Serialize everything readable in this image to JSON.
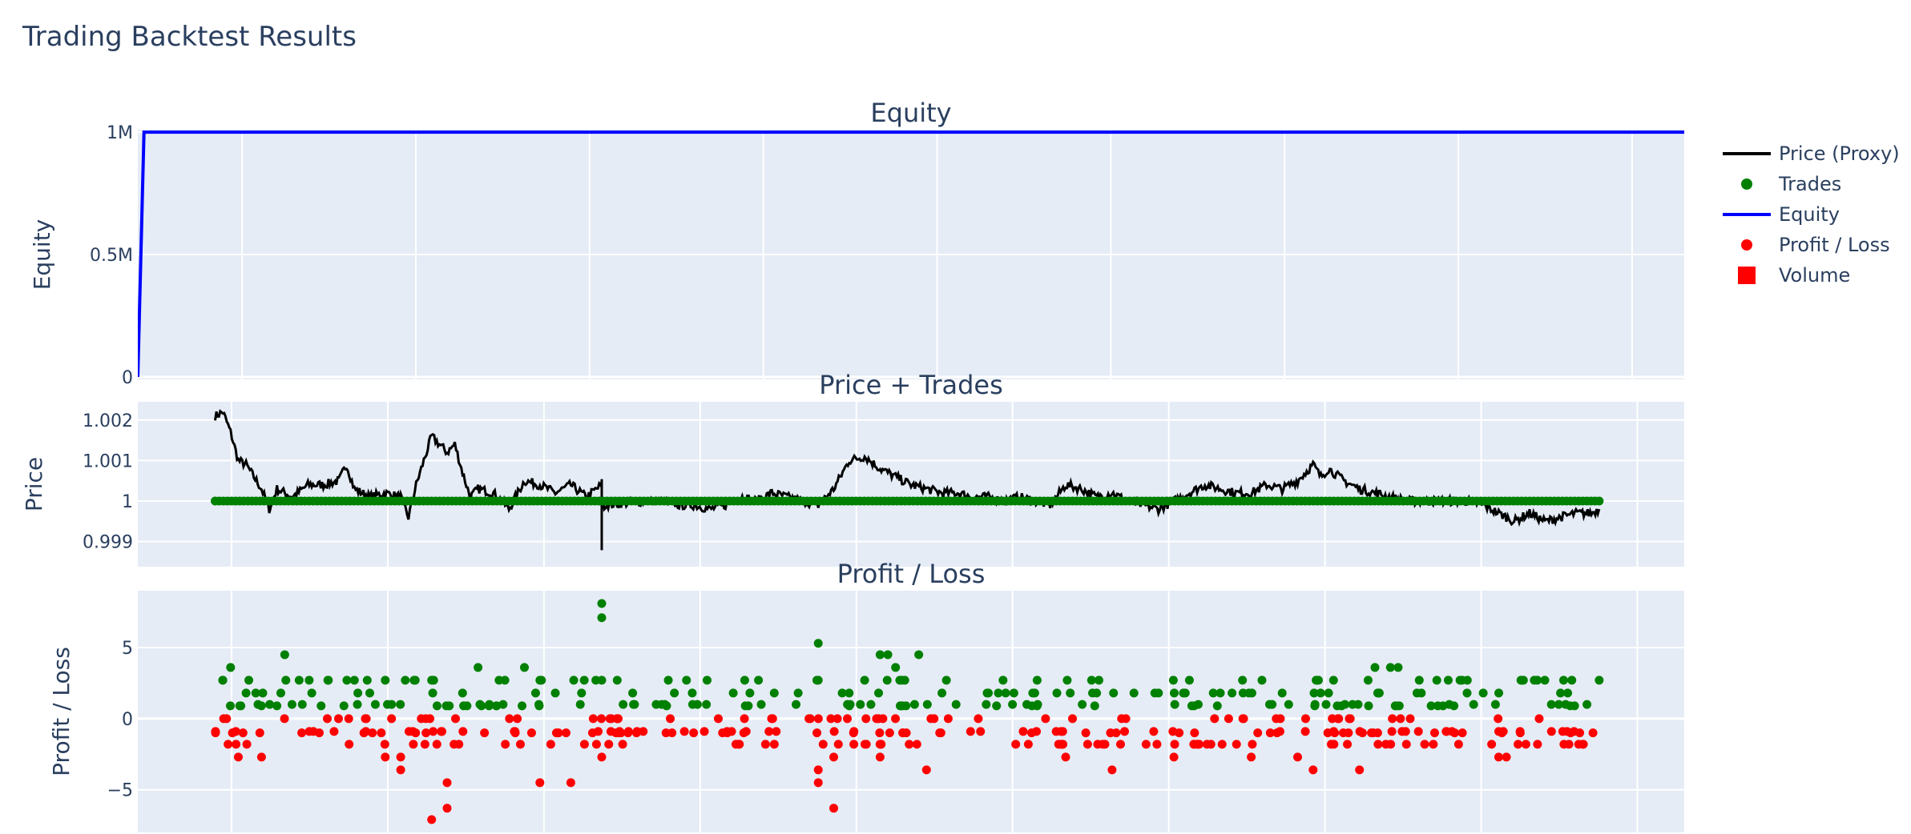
{
  "title": "Trading Backtest Results",
  "legend": {
    "placement": "top-right",
    "items": [
      {
        "label": "Price (Proxy)",
        "symbol": "line",
        "color": "#000000"
      },
      {
        "label": "Trades",
        "symbol": "dot",
        "color": "#008000"
      },
      {
        "label": "Equity",
        "symbol": "line",
        "color": "#0000ff"
      },
      {
        "label": "Profit / Loss",
        "symbol": "dot",
        "color": "#ff0000"
      },
      {
        "label": "Volume",
        "symbol": "square",
        "color": "#ff0000"
      }
    ]
  },
  "colors": {
    "plot_bg": "#e5ecf6",
    "grid": "#ffffff",
    "text": "#2a3f5f"
  },
  "chart_data": [
    {
      "type": "line",
      "subplot_title": "Equity",
      "ylabel": "Equity",
      "ylim": [
        -10000,
        1010000
      ],
      "yticks": [
        0,
        500000,
        1000000
      ],
      "ytick_labels": [
        "0",
        "0.5M",
        "1M"
      ],
      "x_grid_count": 9,
      "series": [
        {
          "name": "Equity",
          "color": "#0000ff",
          "points": [
            [
              0,
              0
            ],
            [
              0.004,
              1000000
            ],
            [
              1,
              1000000
            ]
          ]
        }
      ]
    },
    {
      "type": "line",
      "subplot_title": "Price + Trades",
      "ylabel": "Price",
      "ylim": [
        0.99838,
        1.00245
      ],
      "yticks": [
        0.999,
        1,
        1.001,
        1.002
      ],
      "ytick_labels": [
        "0.999",
        "1",
        "1.001",
        "1.002"
      ],
      "x_grid_count": 10,
      "price_series": {
        "name": "Price (Proxy)",
        "color": "#000000",
        "x_start": 0.05,
        "x_end": 0.945,
        "anchors": [
          [
            0.05,
            1.0021
          ],
          [
            0.055,
            1.0022
          ],
          [
            0.06,
            1.0017
          ],
          [
            0.065,
            1.001
          ],
          [
            0.07,
            1.0009
          ],
          [
            0.075,
            1.0006
          ],
          [
            0.08,
            1.0003
          ],
          [
            0.085,
            0.9998
          ],
          [
            0.09,
            1.0003
          ],
          [
            0.095,
            1.0002
          ],
          [
            0.1,
            1.0001
          ],
          [
            0.11,
            1.0004
          ],
          [
            0.12,
            1.0004
          ],
          [
            0.13,
            1.0005
          ],
          [
            0.135,
            1.0009
          ],
          [
            0.14,
            1.0003
          ],
          [
            0.15,
            1.0001
          ],
          [
            0.16,
            1.0002
          ],
          [
            0.17,
            1.0001
          ],
          [
            0.175,
            0.9996
          ],
          [
            0.18,
            1.0004
          ],
          [
            0.19,
            1.0016
          ],
          [
            0.2,
            1.0012
          ],
          [
            0.205,
            1.0014
          ],
          [
            0.21,
            1.0007
          ],
          [
            0.215,
            1.0001
          ],
          [
            0.22,
            1.0003
          ],
          [
            0.23,
            1.0002
          ],
          [
            0.24,
            0.9998
          ],
          [
            0.25,
            1.0005
          ],
          [
            0.26,
            1.0004
          ],
          [
            0.27,
            1.0002
          ],
          [
            0.28,
            1.0004
          ],
          [
            0.29,
            1.0001
          ],
          [
            0.3,
            1.0004
          ],
          [
            0.3,
            1.0005
          ],
          [
            0.3,
            0.9997
          ],
          [
            0.3,
            0.999
          ],
          [
            0.3,
            0.9987
          ],
          [
            0.3,
            0.9994
          ],
          [
            0.3,
            0.9996
          ],
          [
            0.3,
            0.9999
          ],
          [
            0.33,
            1.0
          ],
          [
            0.34,
            1.0
          ],
          [
            0.35,
            0.9999
          ],
          [
            0.36,
            0.9999
          ],
          [
            0.37,
            0.9998
          ],
          [
            0.38,
            0.9999
          ],
          [
            0.39,
            1.0001
          ],
          [
            0.4,
            1.0
          ],
          [
            0.41,
            1.0002
          ],
          [
            0.42,
            1.0001
          ],
          [
            0.43,
            1.0
          ],
          [
            0.44,
            0.9999
          ],
          [
            0.45,
            1.0003
          ],
          [
            0.46,
            1.001
          ],
          [
            0.47,
            1.0011
          ],
          [
            0.48,
            1.0008
          ],
          [
            0.49,
            1.0006
          ],
          [
            0.5,
            1.0004
          ],
          [
            0.51,
            1.0003
          ],
          [
            0.52,
            1.0002
          ],
          [
            0.53,
            1.0002
          ],
          [
            0.54,
            1.0001
          ],
          [
            0.55,
            1.0001
          ],
          [
            0.56,
            1.0
          ],
          [
            0.57,
            1.0001
          ],
          [
            0.58,
            1.0
          ],
          [
            0.59,
            0.9999
          ],
          [
            0.6,
            1.0004
          ],
          [
            0.61,
            1.0003
          ],
          [
            0.62,
            1.0001
          ],
          [
            0.63,
            1.0002
          ],
          [
            0.64,
            1.0
          ],
          [
            0.65,
            0.9999
          ],
          [
            0.66,
            0.9998
          ],
          [
            0.67,
            1.0
          ],
          [
            0.68,
            1.0002
          ],
          [
            0.69,
            1.0004
          ],
          [
            0.7,
            1.0003
          ],
          [
            0.71,
            1.0002
          ],
          [
            0.72,
            1.0002
          ],
          [
            0.73,
            1.0004
          ],
          [
            0.74,
            1.0003
          ],
          [
            0.75,
            1.0005
          ],
          [
            0.76,
            1.0009
          ],
          [
            0.765,
            1.0006
          ],
          [
            0.77,
            1.0008
          ],
          [
            0.78,
            1.0005
          ],
          [
            0.79,
            1.0003
          ],
          [
            0.8,
            1.0002
          ],
          [
            0.81,
            1.0001
          ],
          [
            0.82,
            1.0
          ],
          [
            0.83,
            1.0
          ],
          [
            0.84,
            1.0
          ],
          [
            0.85,
            1.0
          ],
          [
            0.86,
            1.0
          ],
          [
            0.87,
            0.9999
          ],
          [
            0.88,
            0.9997
          ],
          [
            0.89,
            0.9995
          ],
          [
            0.9,
            0.9997
          ],
          [
            0.91,
            0.9995
          ],
          [
            0.92,
            0.9996
          ],
          [
            0.93,
            0.9997
          ],
          [
            0.94,
            0.9997
          ],
          [
            0.945,
            0.9998
          ]
        ]
      },
      "trades_series": {
        "name": "Trades",
        "color": "#008000",
        "x_start": 0.05,
        "x_end": 0.945,
        "y": 1.0,
        "count": 340
      }
    },
    {
      "type": "scatter",
      "subplot_title": "Profit / Loss",
      "ylabel": "Profit / Loss",
      "ylim": [
        -8,
        9
      ],
      "yticks": [
        -5,
        0,
        5
      ],
      "ytick_labels": [
        "−5",
        "0",
        "5"
      ],
      "x_grid_count": 10,
      "series": [
        {
          "name": "Trades",
          "color": "#008000",
          "points": [
            [
              0.3,
              8.1
            ],
            [
              0.3,
              7.1
            ],
            [
              0.44,
              5.3
            ],
            [
              0.095,
              4.5
            ],
            [
              0.48,
              4.5
            ],
            [
              0.485,
              4.5
            ],
            [
              0.505,
              4.5
            ],
            [
              0.22,
              3.6
            ],
            [
              0.25,
              3.6
            ],
            [
              0.49,
              3.6
            ],
            [
              0.8,
              3.6
            ],
            [
              0.81,
              3.6
            ],
            [
              0.815,
              3.6
            ],
            [
              0.06,
              3.6
            ],
            [
              0.19,
              2.7
            ],
            [
              0.26,
              2.7
            ],
            [
              0.44,
              2.7
            ],
            [
              0.16,
              2.7
            ],
            [
              0.3,
              2.7
            ],
            [
              0.31,
              2.7
            ],
            [
              0.47,
              2.7
            ],
            [
              0.68,
              2.7
            ],
            [
              0.84,
              2.7
            ],
            [
              0.855,
              2.7
            ],
            [
              0.895,
              2.7
            ],
            [
              0.905,
              2.7
            ],
            [
              0.055,
              2.7
            ],
            [
              0.07,
              1.8
            ],
            [
              0.15,
              1.8
            ],
            [
              0.21,
              1.8
            ],
            [
              0.32,
              1.8
            ],
            [
              0.46,
              1.8
            ],
            [
              0.52,
              1.8
            ],
            [
              0.55,
              1.8
            ],
            [
              0.58,
              1.8
            ],
            [
              0.62,
              1.8
            ],
            [
              0.66,
              1.8
            ],
            [
              0.7,
              1.8
            ],
            [
              0.74,
              1.8
            ],
            [
              0.77,
              1.8
            ],
            [
              0.83,
              1.8
            ],
            [
              0.87,
              1.8
            ],
            [
              0.92,
              1.8
            ]
          ],
          "band": {
            "y_values": [
              0.9,
              1.0,
              1.8,
              2.7
            ],
            "x_start": 0.05,
            "x_end": 0.945,
            "count": 200
          }
        },
        {
          "name": "Profit / Loss",
          "color": "#ff0000",
          "points": [
            [
              0.19,
              -7.1
            ],
            [
              0.2,
              -6.3
            ],
            [
              0.45,
              -6.3
            ],
            [
              0.44,
              -4.5
            ],
            [
              0.2,
              -4.5
            ],
            [
              0.26,
              -4.5
            ],
            [
              0.28,
              -4.5
            ],
            [
              0.44,
              -3.6
            ],
            [
              0.17,
              -3.6
            ],
            [
              0.51,
              -3.6
            ],
            [
              0.63,
              -3.6
            ],
            [
              0.76,
              -3.6
            ],
            [
              0.79,
              -3.6
            ],
            [
              0.065,
              -2.7
            ],
            [
              0.08,
              -2.7
            ],
            [
              0.16,
              -2.7
            ],
            [
              0.17,
              -2.7
            ],
            [
              0.3,
              -2.7
            ],
            [
              0.45,
              -2.7
            ],
            [
              0.48,
              -2.7
            ],
            [
              0.6,
              -2.7
            ],
            [
              0.67,
              -2.7
            ],
            [
              0.72,
              -2.7
            ],
            [
              0.75,
              -2.7
            ],
            [
              0.88,
              -2.7
            ],
            [
              0.885,
              -2.7
            ]
          ],
          "band": {
            "y_values": [
              0,
              -0.9,
              -1.0,
              -1.8
            ],
            "x_start": 0.05,
            "x_end": 0.945,
            "count": 260
          }
        }
      ]
    }
  ]
}
